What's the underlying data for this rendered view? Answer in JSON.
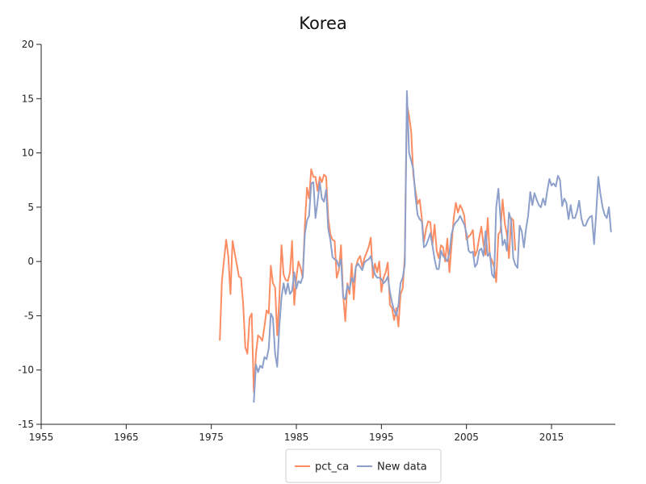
{
  "chart_data": {
    "type": "line",
    "title": "Korea",
    "xlabel": "",
    "ylabel": "",
    "xlim": [
      1955,
      2022.5
    ],
    "ylim": [
      -15,
      20
    ],
    "x_ticks": [
      "1955",
      "1965",
      "1975",
      "1985",
      "1995",
      "2005",
      "2015"
    ],
    "y_ticks": [
      "-15",
      "-10",
      "-5",
      "0",
      "5",
      "10",
      "15",
      "20"
    ],
    "grid": false,
    "legend_position": "bottom-center",
    "series": [
      {
        "name": "pct_ca",
        "color": "#fc8d62",
        "points": [
          [
            1976.0,
            -7.3
          ],
          [
            1976.25,
            -1.8
          ],
          [
            1976.5,
            0.2
          ],
          [
            1976.75,
            2.0
          ],
          [
            1977.0,
            0.5
          ],
          [
            1977.25,
            -3.0
          ],
          [
            1977.5,
            1.9
          ],
          [
            1977.75,
            0.8
          ],
          [
            1978.0,
            -0.3
          ],
          [
            1978.25,
            -1.4
          ],
          [
            1978.5,
            -1.5
          ],
          [
            1978.75,
            -4.0
          ],
          [
            1979.0,
            -7.9
          ],
          [
            1979.25,
            -8.5
          ],
          [
            1979.5,
            -5.2
          ],
          [
            1979.75,
            -4.8
          ],
          [
            1980.0,
            -12.0
          ],
          [
            1980.25,
            -8.5
          ],
          [
            1980.5,
            -6.8
          ],
          [
            1980.75,
            -7.0
          ],
          [
            1981.0,
            -7.3
          ],
          [
            1981.25,
            -6.0
          ],
          [
            1981.5,
            -4.5
          ],
          [
            1981.75,
            -4.8
          ],
          [
            1982.0,
            -0.4
          ],
          [
            1982.25,
            -2.0
          ],
          [
            1982.5,
            -2.4
          ],
          [
            1982.75,
            -6.8
          ],
          [
            1983.0,
            -3.5
          ],
          [
            1983.25,
            1.5
          ],
          [
            1983.5,
            -1.2
          ],
          [
            1983.75,
            -1.7
          ],
          [
            1984.0,
            -1.8
          ],
          [
            1984.25,
            -1.0
          ],
          [
            1984.5,
            1.9
          ],
          [
            1984.75,
            -4.0
          ],
          [
            1985.0,
            -1.5
          ],
          [
            1985.25,
            0.0
          ],
          [
            1985.5,
            -0.6
          ],
          [
            1985.75,
            -1.5
          ],
          [
            1986.0,
            3.3
          ],
          [
            1986.25,
            6.8
          ],
          [
            1986.5,
            5.8
          ],
          [
            1986.75,
            8.5
          ],
          [
            1987.0,
            7.8
          ],
          [
            1987.25,
            7.8
          ],
          [
            1987.5,
            6.5
          ],
          [
            1987.75,
            7.8
          ],
          [
            1988.0,
            7.3
          ],
          [
            1988.25,
            8.0
          ],
          [
            1988.5,
            7.8
          ],
          [
            1988.75,
            4.0
          ],
          [
            1989.0,
            2.5
          ],
          [
            1989.25,
            2.0
          ],
          [
            1989.5,
            1.9
          ],
          [
            1989.75,
            -1.5
          ],
          [
            1990.0,
            -0.8
          ],
          [
            1990.25,
            1.5
          ],
          [
            1990.5,
            -3.0
          ],
          [
            1990.75,
            -5.5
          ],
          [
            1991.0,
            -2.0
          ],
          [
            1991.25,
            -3.0
          ],
          [
            1991.5,
            -0.2
          ],
          [
            1991.75,
            -3.5
          ],
          [
            1992.0,
            -0.5
          ],
          [
            1992.25,
            0.2
          ],
          [
            1992.5,
            0.5
          ],
          [
            1992.75,
            -0.5
          ],
          [
            1993.0,
            0.3
          ],
          [
            1993.25,
            0.8
          ],
          [
            1993.5,
            1.3
          ],
          [
            1993.75,
            2.2
          ],
          [
            1994.0,
            -1.5
          ],
          [
            1994.25,
            -0.2
          ],
          [
            1994.5,
            -1.0
          ],
          [
            1994.75,
            0.0
          ],
          [
            1995.0,
            -2.8
          ],
          [
            1995.25,
            -1.5
          ],
          [
            1995.5,
            -1.0
          ],
          [
            1995.75,
            -0.1
          ],
          [
            1996.0,
            -4.0
          ],
          [
            1996.25,
            -4.3
          ],
          [
            1996.5,
            -5.4
          ],
          [
            1996.75,
            -4.3
          ],
          [
            1997.0,
            -6.0
          ],
          [
            1997.25,
            -3.0
          ],
          [
            1997.5,
            -2.5
          ],
          [
            1997.75,
            0.5
          ],
          [
            1998.0,
            14.5
          ],
          [
            1998.25,
            13.4
          ],
          [
            1998.5,
            12.0
          ],
          [
            1998.75,
            8.0
          ],
          [
            1999.0,
            6.5
          ],
          [
            1999.25,
            5.3
          ],
          [
            1999.5,
            5.7
          ],
          [
            1999.75,
            4.0
          ],
          [
            2000.0,
            1.8
          ],
          [
            2000.25,
            3.0
          ],
          [
            2000.5,
            3.7
          ],
          [
            2000.75,
            3.6
          ],
          [
            2001.0,
            1.5
          ],
          [
            2001.25,
            3.4
          ],
          [
            2001.5,
            1.0
          ],
          [
            2001.75,
            0.3
          ],
          [
            2002.0,
            1.5
          ],
          [
            2002.25,
            1.3
          ],
          [
            2002.5,
            0.0
          ],
          [
            2002.75,
            2.1
          ],
          [
            2003.0,
            -1.0
          ],
          [
            2003.25,
            1.5
          ],
          [
            2003.5,
            4.0
          ],
          [
            2003.75,
            5.4
          ],
          [
            2004.0,
            4.5
          ],
          [
            2004.25,
            5.2
          ],
          [
            2004.5,
            4.8
          ],
          [
            2004.75,
            4.2
          ],
          [
            2005.0,
            2.0
          ],
          [
            2005.25,
            2.3
          ],
          [
            2005.5,
            2.5
          ],
          [
            2005.75,
            2.9
          ],
          [
            2006.0,
            0.5
          ],
          [
            2006.25,
            1.0
          ],
          [
            2006.5,
            2.2
          ],
          [
            2006.75,
            3.2
          ],
          [
            2007.0,
            1.6
          ],
          [
            2007.25,
            0.6
          ],
          [
            2007.5,
            4.0
          ],
          [
            2007.75,
            0.5
          ],
          [
            2008.0,
            0.1
          ],
          [
            2008.25,
            -0.5
          ],
          [
            2008.5,
            -1.9
          ],
          [
            2008.75,
            2.5
          ],
          [
            2009.0,
            2.8
          ],
          [
            2009.25,
            5.7
          ],
          [
            2009.5,
            3.5
          ],
          [
            2009.75,
            2.5
          ],
          [
            2010.0,
            0.3
          ],
          [
            2010.25,
            4.0
          ],
          [
            2010.5,
            3.8
          ],
          [
            2010.75,
            1.0
          ]
        ]
      },
      {
        "name": "New data",
        "color": "#8da0cb",
        "points": [
          [
            1980.0,
            -13.0
          ],
          [
            1980.25,
            -9.5
          ],
          [
            1980.5,
            -10.2
          ],
          [
            1980.75,
            -9.6
          ],
          [
            1981.0,
            -9.8
          ],
          [
            1981.25,
            -8.8
          ],
          [
            1981.5,
            -9.0
          ],
          [
            1981.75,
            -8.0
          ],
          [
            1982.0,
            -4.8
          ],
          [
            1982.25,
            -5.2
          ],
          [
            1982.5,
            -8.5
          ],
          [
            1982.75,
            -9.7
          ],
          [
            1983.0,
            -6.0
          ],
          [
            1983.25,
            -3.3
          ],
          [
            1983.5,
            -2.0
          ],
          [
            1983.75,
            -3.0
          ],
          [
            1984.0,
            -2.0
          ],
          [
            1984.25,
            -3.0
          ],
          [
            1984.5,
            -2.7
          ],
          [
            1984.75,
            -1.0
          ],
          [
            1985.0,
            -2.5
          ],
          [
            1985.25,
            -1.8
          ],
          [
            1985.5,
            -2.0
          ],
          [
            1985.75,
            -1.4
          ],
          [
            1986.0,
            2.5
          ],
          [
            1986.25,
            3.8
          ],
          [
            1986.5,
            4.2
          ],
          [
            1986.75,
            7.2
          ],
          [
            1987.0,
            7.3
          ],
          [
            1987.25,
            4.0
          ],
          [
            1987.5,
            5.5
          ],
          [
            1987.75,
            7.3
          ],
          [
            1988.0,
            5.8
          ],
          [
            1988.25,
            5.5
          ],
          [
            1988.5,
            6.6
          ],
          [
            1988.75,
            3.0
          ],
          [
            1989.0,
            2.0
          ],
          [
            1989.25,
            0.4
          ],
          [
            1989.5,
            0.2
          ],
          [
            1989.75,
            0.1
          ],
          [
            1990.0,
            -0.5
          ],
          [
            1990.25,
            0.2
          ],
          [
            1990.5,
            -3.3
          ],
          [
            1990.75,
            -3.5
          ],
          [
            1991.0,
            -2.2
          ],
          [
            1991.25,
            -2.6
          ],
          [
            1991.5,
            -1.5
          ],
          [
            1991.75,
            -1.9
          ],
          [
            1992.0,
            -0.5
          ],
          [
            1992.25,
            -0.2
          ],
          [
            1992.5,
            -0.5
          ],
          [
            1992.75,
            -0.8
          ],
          [
            1993.0,
            -0.1
          ],
          [
            1993.25,
            0.1
          ],
          [
            1993.5,
            0.2
          ],
          [
            1993.75,
            0.5
          ],
          [
            1994.0,
            -0.5
          ],
          [
            1994.25,
            -1.2
          ],
          [
            1994.5,
            -1.5
          ],
          [
            1994.75,
            -1.5
          ],
          [
            1995.0,
            -1.6
          ],
          [
            1995.25,
            -2.0
          ],
          [
            1995.5,
            -1.8
          ],
          [
            1995.75,
            -1.4
          ],
          [
            1996.0,
            -2.8
          ],
          [
            1996.25,
            -3.8
          ],
          [
            1996.5,
            -4.5
          ],
          [
            1996.75,
            -5.0
          ],
          [
            1997.0,
            -4.0
          ],
          [
            1997.25,
            -2.0
          ],
          [
            1997.5,
            -1.5
          ],
          [
            1997.75,
            -0.3
          ],
          [
            1998.0,
            15.7
          ],
          [
            1998.25,
            10.0
          ],
          [
            1998.5,
            9.3
          ],
          [
            1998.75,
            8.5
          ],
          [
            1999.0,
            6.0
          ],
          [
            1999.25,
            4.3
          ],
          [
            1999.5,
            3.9
          ],
          [
            1999.75,
            3.7
          ],
          [
            2000.0,
            1.3
          ],
          [
            2000.25,
            1.5
          ],
          [
            2000.5,
            2.0
          ],
          [
            2000.75,
            2.6
          ],
          [
            2001.0,
            1.5
          ],
          [
            2001.25,
            0.2
          ],
          [
            2001.5,
            -0.7
          ],
          [
            2001.75,
            -0.7
          ],
          [
            2002.0,
            1.0
          ],
          [
            2002.25,
            0.5
          ],
          [
            2002.5,
            0.3
          ],
          [
            2002.75,
            0.0
          ],
          [
            2003.0,
            0.8
          ],
          [
            2003.25,
            2.5
          ],
          [
            2003.5,
            3.3
          ],
          [
            2003.75,
            3.6
          ],
          [
            2004.0,
            3.8
          ],
          [
            2004.25,
            4.2
          ],
          [
            2004.5,
            3.8
          ],
          [
            2004.75,
            3.4
          ],
          [
            2005.0,
            2.6
          ],
          [
            2005.25,
            1.0
          ],
          [
            2005.5,
            0.8
          ],
          [
            2005.75,
            0.9
          ],
          [
            2006.0,
            -0.5
          ],
          [
            2006.25,
            -0.2
          ],
          [
            2006.5,
            1.0
          ],
          [
            2006.75,
            1.2
          ],
          [
            2007.0,
            0.5
          ],
          [
            2007.25,
            2.8
          ],
          [
            2007.5,
            0.5
          ],
          [
            2007.75,
            0.8
          ],
          [
            2008.0,
            -1.2
          ],
          [
            2008.25,
            -1.5
          ],
          [
            2008.5,
            5.0
          ],
          [
            2008.75,
            6.7
          ],
          [
            2009.0,
            4.0
          ],
          [
            2009.25,
            1.5
          ],
          [
            2009.5,
            2.0
          ],
          [
            2009.75,
            1.0
          ],
          [
            2010.0,
            4.5
          ],
          [
            2010.25,
            3.8
          ],
          [
            2010.5,
            0.3
          ],
          [
            2010.75,
            -0.3
          ],
          [
            2011.0,
            -0.6
          ],
          [
            2011.25,
            3.3
          ],
          [
            2011.5,
            2.8
          ],
          [
            2011.75,
            1.3
          ],
          [
            2012.0,
            3.0
          ],
          [
            2012.25,
            4.2
          ],
          [
            2012.5,
            6.4
          ],
          [
            2012.75,
            5.2
          ],
          [
            2013.0,
            6.3
          ],
          [
            2013.25,
            5.7
          ],
          [
            2013.5,
            5.2
          ],
          [
            2013.75,
            5.0
          ],
          [
            2014.0,
            5.8
          ],
          [
            2014.25,
            5.2
          ],
          [
            2014.5,
            6.5
          ],
          [
            2014.75,
            7.6
          ],
          [
            2015.0,
            7.0
          ],
          [
            2015.25,
            7.2
          ],
          [
            2015.5,
            6.9
          ],
          [
            2015.75,
            7.9
          ],
          [
            2016.0,
            7.5
          ],
          [
            2016.25,
            5.1
          ],
          [
            2016.5,
            5.8
          ],
          [
            2016.75,
            5.4
          ],
          [
            2017.0,
            3.9
          ],
          [
            2017.25,
            5.2
          ],
          [
            2017.5,
            4.0
          ],
          [
            2017.75,
            4.0
          ],
          [
            2018.0,
            4.6
          ],
          [
            2018.25,
            5.6
          ],
          [
            2018.5,
            4.0
          ],
          [
            2018.75,
            3.3
          ],
          [
            2019.0,
            3.3
          ],
          [
            2019.25,
            3.8
          ],
          [
            2019.5,
            4.1
          ],
          [
            2019.75,
            4.2
          ],
          [
            2020.0,
            1.6
          ],
          [
            2020.25,
            4.4
          ],
          [
            2020.5,
            7.8
          ],
          [
            2020.75,
            6.2
          ],
          [
            2021.0,
            5.0
          ],
          [
            2021.25,
            4.3
          ],
          [
            2021.5,
            4.0
          ],
          [
            2021.75,
            5.0
          ],
          [
            2022.0,
            2.7
          ]
        ]
      }
    ]
  }
}
